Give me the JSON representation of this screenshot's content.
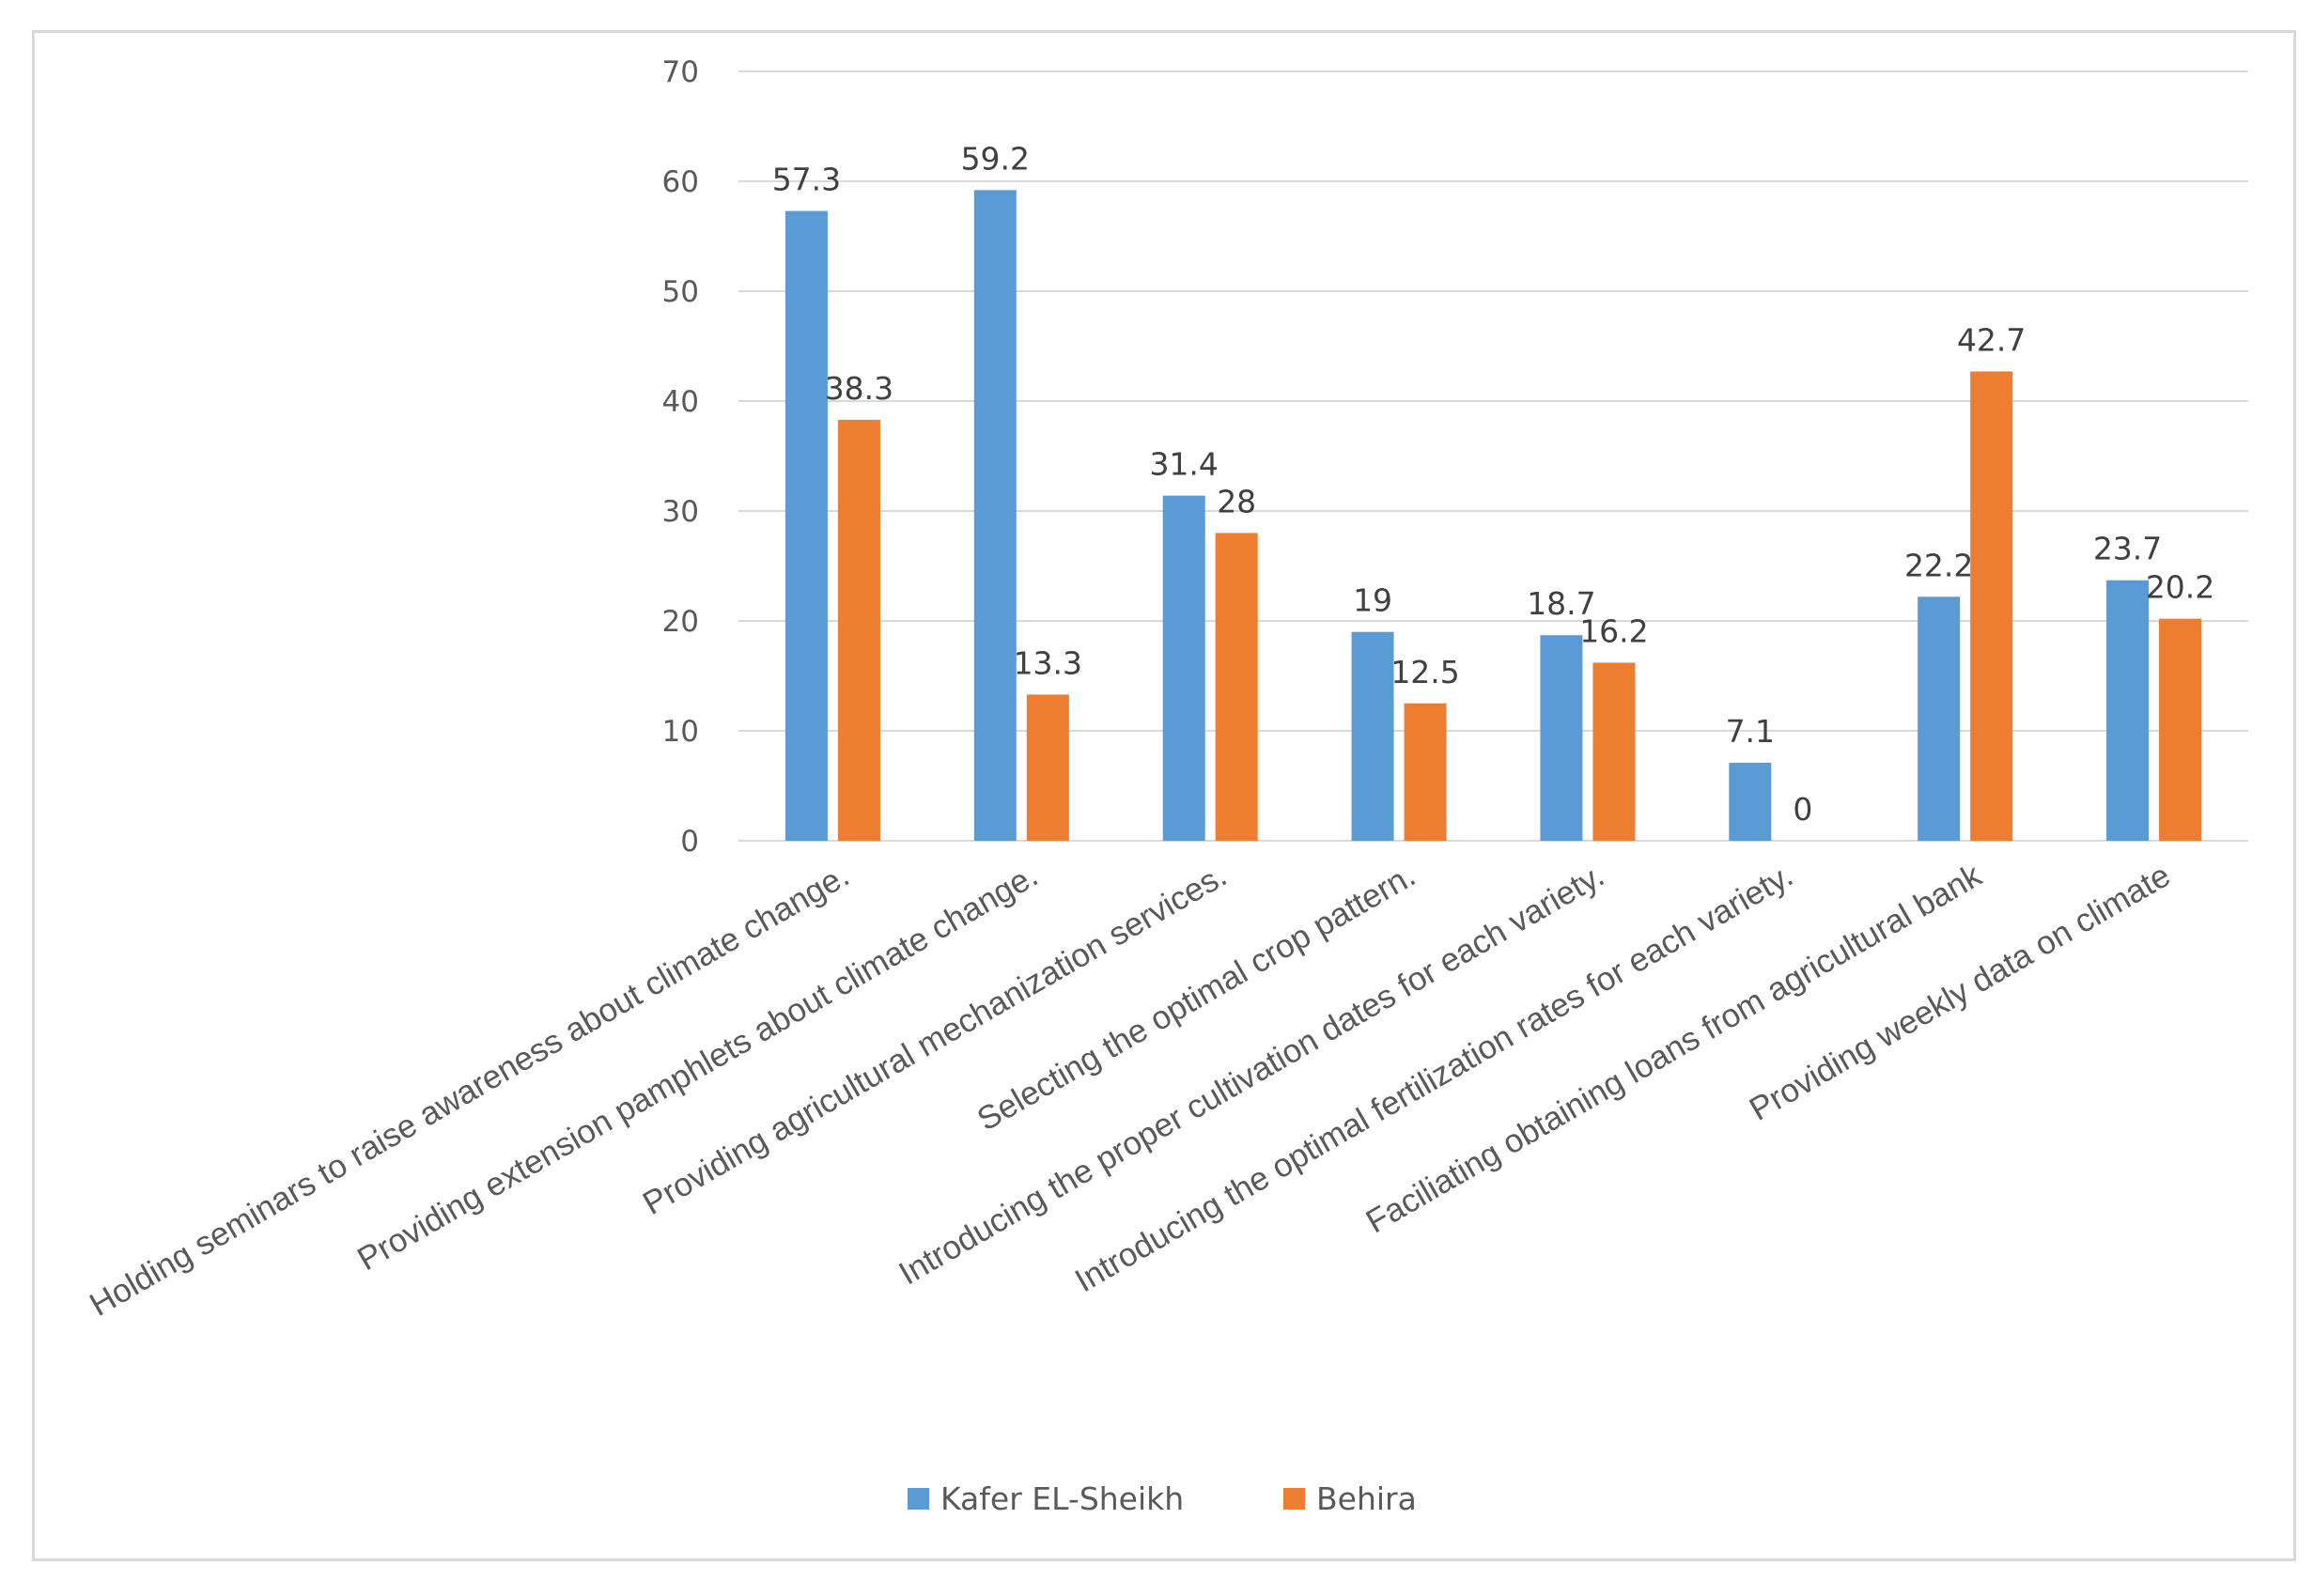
{
  "chart_data": {
    "type": "bar",
    "title": "",
    "xlabel": "",
    "ylabel": "",
    "ylim": [
      0,
      70
    ],
    "yticks": [
      0,
      10,
      20,
      30,
      40,
      50,
      60,
      70
    ],
    "grid": true,
    "legend_position": "bottom",
    "categories": [
      "Holding seminars to raise awareness about climate change.",
      "Providing extension pamphlets about climate change.",
      "Providing agricultural mechanization services.",
      "Selecting the optimal crop pattern.",
      "Introducing the proper cultivation dates for each variety.",
      "Introducing the optimal fertilization rates for each variety.",
      "Faciliating obtaining loans from agricultural bank",
      "Providing weekly data on climate"
    ],
    "series": [
      {
        "name": "Kafer EL-Sheikh",
        "color": "#5b9bd5",
        "values": [
          57.3,
          59.2,
          31.4,
          19,
          18.7,
          7.1,
          22.2,
          23.7
        ]
      },
      {
        "name": "Behira",
        "color": "#ed7d31",
        "values": [
          38.3,
          13.3,
          28,
          12.5,
          16.2,
          0,
          42.7,
          20.2
        ]
      }
    ]
  }
}
